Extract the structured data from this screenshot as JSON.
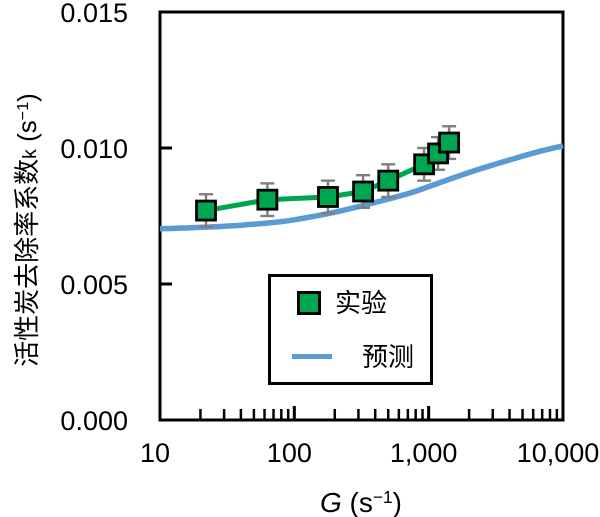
{
  "chart_data": {
    "type": "line",
    "title": "",
    "axes": {
      "x_scale": "log",
      "xlim": [
        10,
        10000
      ],
      "ylim": [
        0,
        0.015
      ],
      "grid": false
    },
    "x_axis": {
      "ticks": [
        10,
        100,
        1000,
        10000
      ],
      "labels": [
        "10",
        "100",
        "1,000",
        "10,000"
      ]
    },
    "y_axis": {
      "ticks": [
        0,
        0.005,
        0.01,
        0.015
      ],
      "labels": [
        "0.000",
        "0.005",
        "0.010",
        "0.015"
      ]
    },
    "xlabel": {
      "symbol": "G",
      "unit_pre": " (s",
      "unit_sup": "−1",
      "unit_post": ")"
    },
    "ylabel": {
      "text": "活性炭去除率系数",
      "symbol": "k",
      "unit_pre": " (s",
      "unit_sup": "−1",
      "unit_post": ")"
    },
    "series": [
      {
        "name": "实验",
        "type": "scatter-line",
        "marker": "square",
        "color": "#00A550",
        "line_color": "#00A550",
        "marker_border": "#000000",
        "error_color": "#7f7f7f",
        "x": [
          22,
          63,
          178,
          325,
          500,
          925,
          1175,
          1420
        ],
        "y": [
          0.0077,
          0.0081,
          0.0082,
          0.0084,
          0.0088,
          0.0094,
          0.0098,
          0.0102
        ],
        "yerr": [
          0.0006,
          0.0006,
          0.0006,
          0.0006,
          0.0006,
          0.0006,
          0.0006,
          0.0006
        ]
      },
      {
        "name": "预测",
        "type": "line",
        "color": "#5B9BD5",
        "x": [
          10,
          20,
          40,
          70,
          100,
          200,
          400,
          700,
          1000,
          2000,
          4000,
          7000,
          10000
        ],
        "y": [
          0.00703,
          0.00708,
          0.00716,
          0.00726,
          0.00736,
          0.00764,
          0.008,
          0.00832,
          0.00858,
          0.0091,
          0.00956,
          0.0099,
          0.01008
        ]
      }
    ],
    "legend": {
      "position": "bottom-center",
      "entries": [
        "实验",
        "预测"
      ],
      "border_color": "#000000"
    }
  }
}
